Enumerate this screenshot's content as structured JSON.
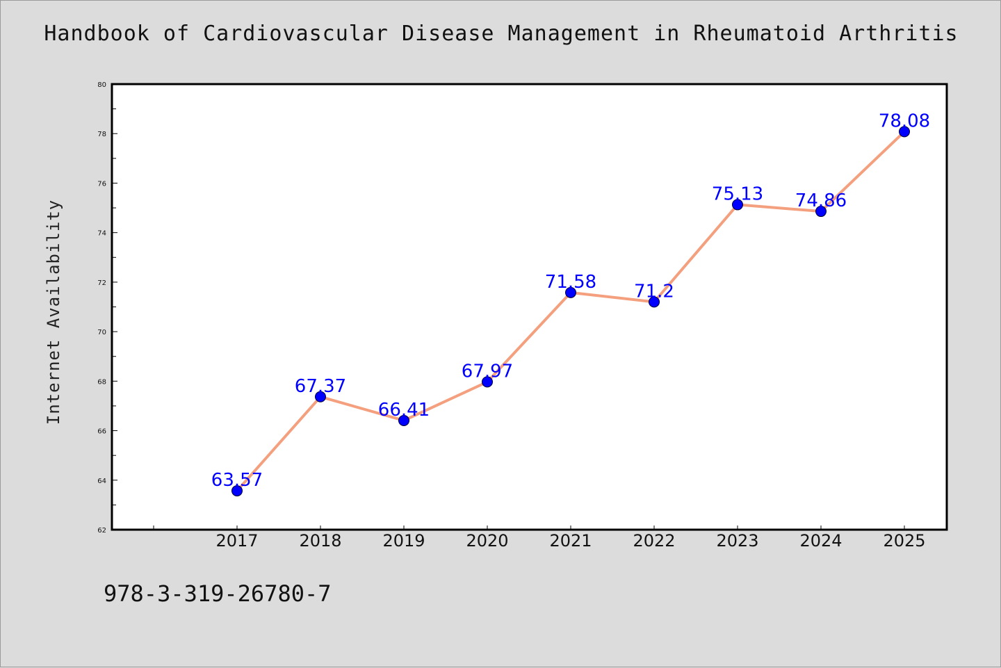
{
  "figure": {
    "title": "Handbook of Cardiovascular Disease Management in Rheumatoid Arthritis",
    "isbn": "978-3-319-26780-7"
  },
  "chart_data": {
    "type": "line",
    "title": "Handbook of Cardiovascular Disease Management in Rheumatoid Arthritis",
    "xlabel": "",
    "ylabel": "Internet Availability",
    "categories": [
      "2017",
      "2018",
      "2019",
      "2020",
      "2021",
      "2022",
      "2023",
      "2024",
      "2025"
    ],
    "series": [
      {
        "values": [
          63.57,
          67.37,
          66.41,
          67.97,
          71.58,
          71.2,
          75.13,
          74.86,
          78.08
        ],
        "labels": [
          "63.57",
          "67.37",
          "66.41",
          "67.97",
          "71.58",
          "71.2",
          "75.13",
          "74.86",
          "78.08"
        ]
      }
    ],
    "ylim": [
      62,
      80
    ],
    "yticks": [
      62,
      64,
      66,
      68,
      70,
      72,
      74,
      76,
      78,
      80
    ],
    "grid": false,
    "legend": "none",
    "colors": {
      "line": "#f4a07e",
      "marker": "#0000ff",
      "data_label": "#0000ff",
      "axes": "#000000",
      "plot_background": "#ffffff",
      "figure_background": "#dcdcdc"
    }
  }
}
